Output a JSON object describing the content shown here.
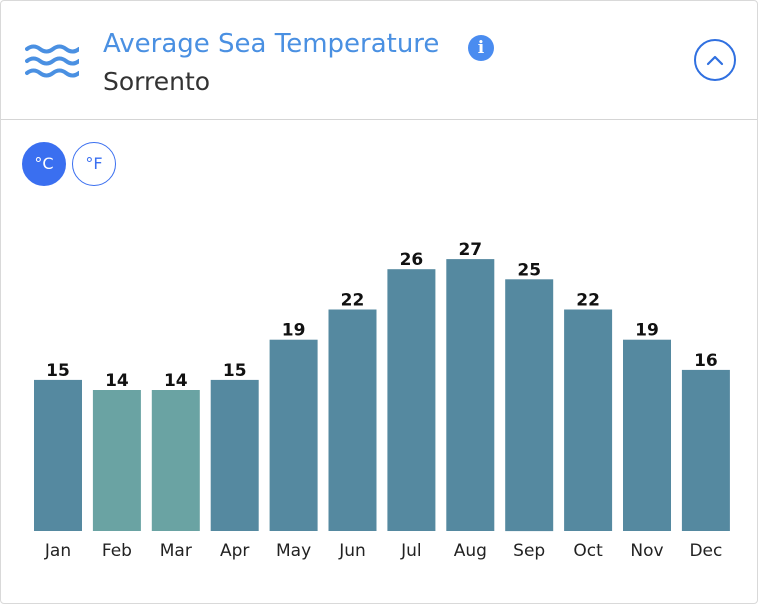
{
  "header": {
    "title": "Average Sea Temperature",
    "subtitle": "Sorrento",
    "wave_icon": "waves-icon",
    "info_icon": "info-icon",
    "info_symbol": "i",
    "collapse_icon": "chevron-up-icon"
  },
  "units": {
    "celsius_label": "°C",
    "fahrenheit_label": "°F",
    "selected": "celsius"
  },
  "colors": {
    "title": "#4a90e2",
    "accent": "#3a6ff0",
    "bar_default": "#5589a0",
    "bar_cool": "#6aa3a3"
  },
  "chart_data": {
    "type": "bar",
    "categories": [
      "Jan",
      "Feb",
      "Mar",
      "Apr",
      "May",
      "Jun",
      "Jul",
      "Aug",
      "Sep",
      "Oct",
      "Nov",
      "Dec"
    ],
    "values": [
      15,
      14,
      14,
      15,
      19,
      22,
      26,
      27,
      25,
      22,
      19,
      16
    ],
    "bar_colors": [
      "#5589a0",
      "#6aa3a3",
      "#6aa3a3",
      "#5589a0",
      "#5589a0",
      "#5589a0",
      "#5589a0",
      "#5589a0",
      "#5589a0",
      "#5589a0",
      "#5589a0",
      "#5589a0"
    ],
    "title": "",
    "xlabel": "",
    "ylabel": "",
    "ylim": [
      0,
      27
    ],
    "grid": false,
    "legend": "none"
  }
}
